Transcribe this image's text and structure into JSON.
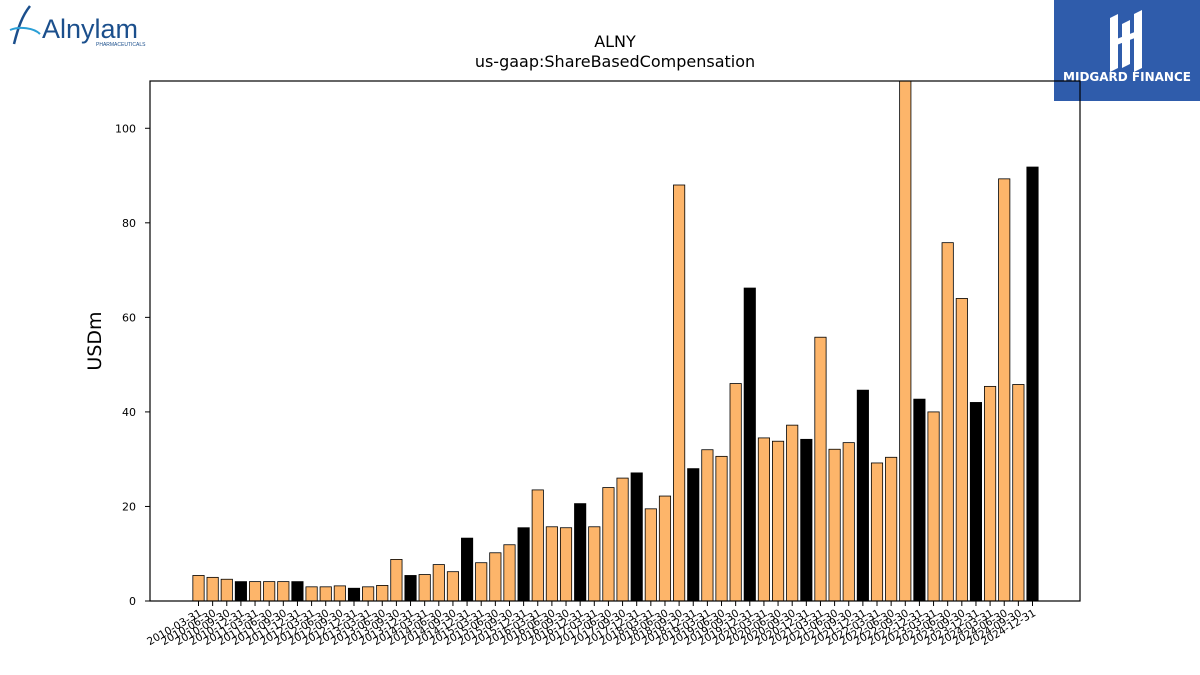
{
  "chart_data": {
    "type": "bar",
    "title": "ALNY",
    "subtitle": "us-gaap:ShareBasedCompensation",
    "ylabel": "USDm",
    "xlabel": "",
    "ylim": [
      0,
      110
    ],
    "yticks": [
      0,
      20,
      40,
      60,
      80,
      100
    ],
    "categories": [
      "2010-03-31",
      "2010-06-30",
      "2010-09-30",
      "2010-12-31",
      "2011-03-31",
      "2011-06-30",
      "2011-09-30",
      "2011-12-31",
      "2012-03-31",
      "2012-06-30",
      "2012-09-30",
      "2012-12-31",
      "2013-03-31",
      "2013-06-30",
      "2013-09-30",
      "2013-12-31",
      "2014-03-31",
      "2014-06-30",
      "2014-09-30",
      "2014-12-31",
      "2015-03-31",
      "2015-06-30",
      "2015-09-30",
      "2015-12-31",
      "2016-03-31",
      "2016-06-30",
      "2016-09-30",
      "2016-12-31",
      "2017-03-31",
      "2017-06-30",
      "2017-09-30",
      "2017-12-31",
      "2018-03-31",
      "2018-06-30",
      "2018-09-30",
      "2018-12-31",
      "2019-03-31",
      "2019-06-30",
      "2019-09-30",
      "2019-12-31",
      "2020-03-31",
      "2020-06-30",
      "2020-09-30",
      "2020-12-31",
      "2021-03-31",
      "2021-06-30",
      "2021-09-30",
      "2021-12-31",
      "2022-03-31",
      "2022-06-30",
      "2022-09-30",
      "2022-12-31",
      "2023-03-31",
      "2023-06-30",
      "2023-09-30",
      "2023-12-31",
      "2024-03-31",
      "2024-06-30",
      "2024-09-30",
      "2024-12-31"
    ],
    "values": [
      5.4,
      5.0,
      4.6,
      4.1,
      4.1,
      4.1,
      4.1,
      4.1,
      3.0,
      3.0,
      3.2,
      2.7,
      3.0,
      3.3,
      8.8,
      5.4,
      5.6,
      7.7,
      6.2,
      13.3,
      8.1,
      10.2,
      11.9,
      15.5,
      23.5,
      15.7,
      15.5,
      20.6,
      15.7,
      24.0,
      26.0,
      27.1,
      19.5,
      22.2,
      88.0,
      28.0,
      32.0,
      30.6,
      46.0,
      66.2,
      34.5,
      33.8,
      37.2,
      34.2,
      55.8,
      32.1,
      33.5,
      44.6,
      29.2,
      30.4,
      110.0,
      42.7,
      40.0,
      75.8,
      64.0,
      42.0,
      45.4,
      89.3,
      45.8,
      91.8
    ],
    "highlight_categories": [
      "2010-12-31",
      "2011-12-31",
      "2012-12-31",
      "2013-12-31",
      "2014-12-31",
      "2015-12-31",
      "2016-12-31",
      "2017-12-31",
      "2018-12-31",
      "2019-12-31",
      "2020-12-31",
      "2021-12-31",
      "2022-12-31",
      "2023-12-31",
      "2024-12-31"
    ],
    "colors": {
      "bar": "#fdb56a",
      "highlight": "#000000",
      "edge": "#000000"
    },
    "grid": false,
    "legend": "none"
  },
  "logos": {
    "left": {
      "text": "Alnylam",
      "sub": "PHARMACEUTICALS",
      "color": "#1b4f8c"
    },
    "right": {
      "text": "MIDGARD FINANCE",
      "bg": "#2f5cab",
      "fg": "#ffffff"
    }
  }
}
